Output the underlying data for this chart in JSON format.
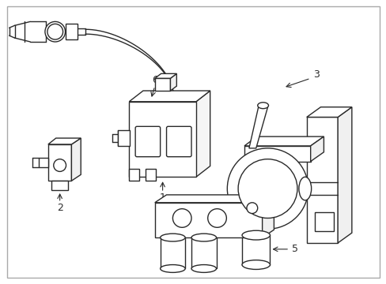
{
  "background_color": "#ffffff",
  "border_color": "#aaaaaa",
  "line_color": "#2a2a2a",
  "figsize": [
    4.89,
    3.6
  ],
  "dpi": 100
}
